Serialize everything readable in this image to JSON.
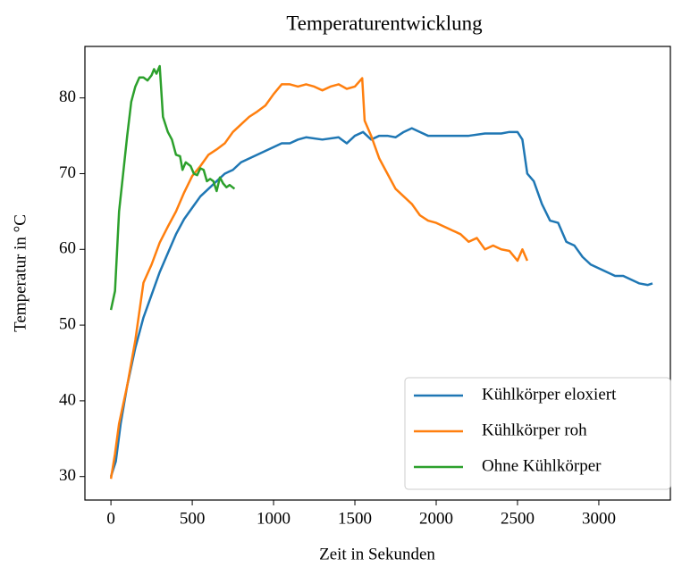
{
  "chart_data": {
    "type": "line",
    "title": "Temperaturentwicklung",
    "x_label": "Zeit in Sekunden",
    "y_label": "Temperatur in °C",
    "xlim": [
      -160,
      3440
    ],
    "ylim": [
      26.9,
      86.8
    ],
    "xticks": [
      0,
      500,
      1000,
      1500,
      2000,
      2500,
      3000
    ],
    "yticks": [
      30,
      40,
      50,
      60,
      70,
      80
    ],
    "grid": false,
    "legend": "lower right",
    "series": [
      {
        "name": "Kühlkörper eloxiert",
        "color": "#1f77b4",
        "x": [
          0,
          30,
          60,
          100,
          150,
          200,
          250,
          300,
          350,
          400,
          450,
          500,
          550,
          600,
          650,
          700,
          750,
          800,
          850,
          900,
          950,
          1000,
          1050,
          1100,
          1150,
          1200,
          1300,
          1400,
          1450,
          1500,
          1550,
          1600,
          1650,
          1700,
          1750,
          1800,
          1850,
          1900,
          1950,
          2000,
          2100,
          2200,
          2300,
          2400,
          2450,
          2500,
          2530,
          2560,
          2600,
          2650,
          2700,
          2750,
          2800,
          2850,
          2900,
          2950,
          3000,
          3050,
          3100,
          3150,
          3200,
          3250,
          3300,
          3330
        ],
        "values": [
          30,
          32,
          37,
          42,
          47,
          51,
          54,
          57,
          59.5,
          62,
          64,
          65.5,
          67,
          68,
          69,
          70,
          70.5,
          71.5,
          72,
          72.5,
          73,
          73.5,
          74,
          74,
          74.5,
          74.8,
          74.5,
          74.8,
          74,
          75,
          75.5,
          74.5,
          75,
          75,
          74.8,
          75.5,
          76,
          75.5,
          75,
          75,
          75,
          75,
          75.3,
          75.3,
          75.5,
          75.5,
          74.5,
          70,
          69,
          66,
          63.8,
          63.5,
          61,
          60.5,
          59,
          58,
          57.5,
          57,
          56.5,
          56.5,
          56,
          55.5,
          55.3,
          55.5
        ]
      },
      {
        "name": "Kühlkörper roh",
        "color": "#ff7f0e",
        "x": [
          0,
          25,
          50,
          100,
          150,
          200,
          250,
          300,
          350,
          400,
          450,
          500,
          550,
          600,
          650,
          700,
          750,
          800,
          850,
          900,
          950,
          1000,
          1050,
          1100,
          1150,
          1200,
          1250,
          1300,
          1350,
          1400,
          1450,
          1500,
          1545,
          1560,
          1600,
          1650,
          1700,
          1750,
          1800,
          1850,
          1900,
          1950,
          2000,
          2050,
          2100,
          2150,
          2200,
          2250,
          2300,
          2350,
          2400,
          2450,
          2500,
          2530,
          2560
        ],
        "values": [
          29.7,
          33,
          37,
          42,
          48,
          55.6,
          58,
          60.9,
          63,
          65,
          67.5,
          69.7,
          71,
          72.5,
          73.2,
          74,
          75.5,
          76.5,
          77.5,
          78.2,
          79,
          80.5,
          81.8,
          81.8,
          81.5,
          81.8,
          81.5,
          81,
          81.5,
          81.8,
          81.2,
          81.5,
          82.6,
          77,
          75,
          72,
          70,
          68,
          67,
          66,
          64.5,
          63.8,
          63.5,
          63,
          62.5,
          62,
          61,
          61.5,
          60,
          60.5,
          60,
          59.8,
          58.5,
          60,
          58.5
        ]
      },
      {
        "name": "Ohne Kühlkörper",
        "color": "#2ca02c",
        "x": [
          0,
          25,
          50,
          75,
          100,
          125,
          150,
          175,
          200,
          225,
          250,
          265,
          280,
          300,
          320,
          350,
          375,
          400,
          425,
          440,
          460,
          490,
          510,
          530,
          550,
          570,
          590,
          610,
          630,
          650,
          670,
          690,
          710,
          730,
          760
        ],
        "values": [
          52,
          54.5,
          65,
          70,
          75,
          79.5,
          81.5,
          82.7,
          82.7,
          82.3,
          83,
          83.8,
          83.2,
          84.2,
          77.5,
          75.5,
          74.5,
          72.5,
          72.3,
          70.5,
          71.5,
          71,
          70,
          69.8,
          70.7,
          70.5,
          69,
          69.3,
          69,
          67.7,
          69.5,
          68.7,
          68.2,
          68.5,
          68
        ]
      }
    ]
  }
}
